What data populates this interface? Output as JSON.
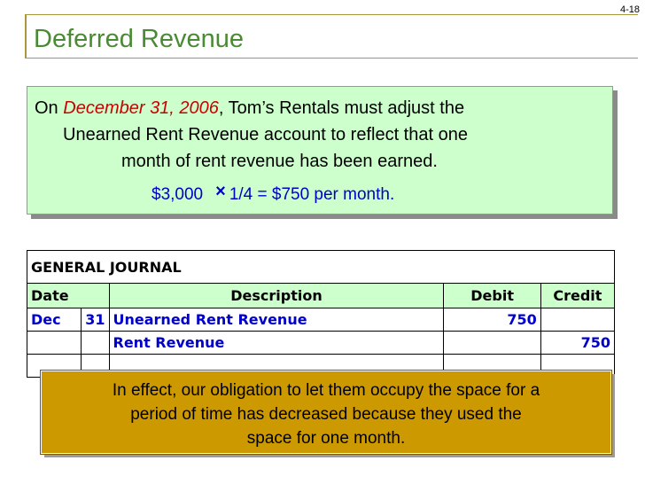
{
  "slide": {
    "number": "4-18",
    "title": "Deferred Revenue"
  },
  "info": {
    "line1_prefix": "On ",
    "line1_date": "December 31, 2006",
    "line1_suffix": ", Tom’s Rentals must adjust the",
    "line2": "Unearned Rent Revenue account to reflect that one",
    "line3": "month of rent revenue has been earned.",
    "calc_amount": "$3,000",
    "calc_operator": "×",
    "calc_rest": "1/4 = $750 per month."
  },
  "journal": {
    "title": "GENERAL JOURNAL",
    "headers": {
      "date": "Date",
      "description": "Description",
      "debit": "Debit",
      "credit": "Credit"
    },
    "rows": [
      {
        "month": "Dec",
        "day": "31",
        "description": "Unearned Rent Revenue",
        "debit": "750",
        "credit": ""
      },
      {
        "month": "",
        "day": "",
        "description": "Rent Revenue",
        "debit": "",
        "credit": "750"
      }
    ]
  },
  "note": {
    "line1": "In effect, our obligation to let them occupy the space for a",
    "line2": "period of time has decreased because they used the",
    "line3": "space for one month."
  },
  "colors": {
    "title": "#4a8a34",
    "info_bg": "#ccffcc",
    "note_bg": "#cc9900",
    "accent_red": "#cc0000",
    "accent_blue": "#0000cc"
  }
}
